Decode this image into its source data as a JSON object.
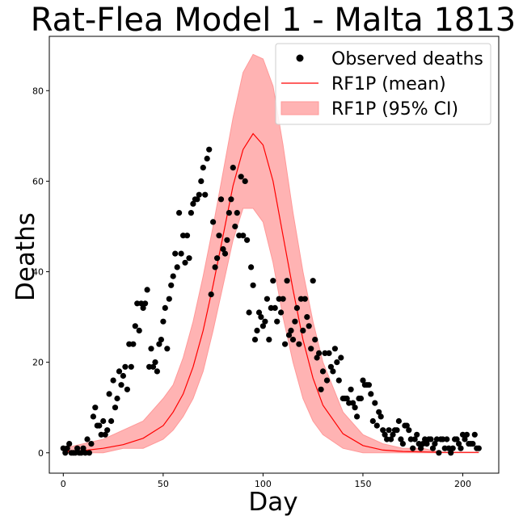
{
  "chart_data": {
    "type": "scatter",
    "title": "Rat-Flea Model 1 - Malta 1813",
    "xlabel": "Day",
    "ylabel": "Deaths",
    "xlim": [
      -7,
      218
    ],
    "ylim": [
      -4.5,
      92
    ],
    "xticks": [
      0,
      50,
      100,
      150,
      200
    ],
    "yticks": [
      0,
      20,
      40,
      60,
      80
    ],
    "grid": false,
    "legend_position": "top-right",
    "colors": {
      "observed": "#000000",
      "mean": "#ff0000",
      "ci_fill": "#ffb3b3",
      "ci_edge": "#ff9999"
    },
    "legend": [
      {
        "label": "Observed deaths",
        "kind": "marker"
      },
      {
        "label": "RF1P (mean)",
        "kind": "line"
      },
      {
        "label": "RF1P (95% CI)",
        "kind": "patch"
      }
    ],
    "series": [
      {
        "name": "Observed deaths",
        "kind": "scatter",
        "points": [
          [
            0,
            1
          ],
          [
            1,
            0
          ],
          [
            2,
            1
          ],
          [
            3,
            2
          ],
          [
            4,
            0
          ],
          [
            5,
            0
          ],
          [
            6,
            0
          ],
          [
            7,
            1
          ],
          [
            8,
            0
          ],
          [
            9,
            0
          ],
          [
            10,
            1
          ],
          [
            11,
            0
          ],
          [
            12,
            3
          ],
          [
            13,
            0
          ],
          [
            14,
            2
          ],
          [
            15,
            8
          ],
          [
            16,
            10
          ],
          [
            17,
            6
          ],
          [
            18,
            6
          ],
          [
            19,
            4
          ],
          [
            20,
            7
          ],
          [
            21,
            4
          ],
          [
            22,
            5
          ],
          [
            23,
            13
          ],
          [
            24,
            7
          ],
          [
            25,
            16
          ],
          [
            26,
            10
          ],
          [
            27,
            12
          ],
          [
            28,
            18
          ],
          [
            29,
            15
          ],
          [
            30,
            17
          ],
          [
            31,
            19
          ],
          [
            32,
            14
          ],
          [
            33,
            24
          ],
          [
            34,
            19
          ],
          [
            35,
            24
          ],
          [
            36,
            28
          ],
          [
            37,
            33
          ],
          [
            38,
            27
          ],
          [
            39,
            33
          ],
          [
            40,
            32
          ],
          [
            41,
            33
          ],
          [
            42,
            36
          ],
          [
            43,
            19
          ],
          [
            44,
            23
          ],
          [
            45,
            19
          ],
          [
            46,
            20
          ],
          [
            47,
            18
          ],
          [
            48,
            24
          ],
          [
            49,
            25
          ],
          [
            50,
            29
          ],
          [
            51,
            32
          ],
          [
            52,
            23
          ],
          [
            53,
            34
          ],
          [
            54,
            37
          ],
          [
            55,
            39
          ],
          [
            56,
            44
          ],
          [
            57,
            41
          ],
          [
            58,
            53
          ],
          [
            59,
            44
          ],
          [
            60,
            48
          ],
          [
            61,
            42
          ],
          [
            62,
            48
          ],
          [
            63,
            43
          ],
          [
            64,
            53
          ],
          [
            65,
            55
          ],
          [
            66,
            56
          ],
          [
            67,
            56
          ],
          [
            68,
            57
          ],
          [
            69,
            60
          ],
          [
            70,
            63
          ],
          [
            71,
            57
          ],
          [
            72,
            65
          ],
          [
            73,
            67
          ],
          [
            74,
            35
          ],
          [
            75,
            51
          ],
          [
            76,
            41
          ],
          [
            77,
            43
          ],
          [
            78,
            48
          ],
          [
            79,
            56
          ],
          [
            80,
            45
          ],
          [
            81,
            44
          ],
          [
            82,
            47
          ],
          [
            83,
            53
          ],
          [
            84,
            56
          ],
          [
            85,
            63
          ],
          [
            86,
            50
          ],
          [
            87,
            53
          ],
          [
            88,
            48
          ],
          [
            89,
            61
          ],
          [
            90,
            48
          ],
          [
            91,
            60
          ],
          [
            92,
            47
          ],
          [
            93,
            31
          ],
          [
            94,
            41
          ],
          [
            95,
            37
          ],
          [
            96,
            25
          ],
          [
            97,
            27
          ],
          [
            98,
            31
          ],
          [
            99,
            30
          ],
          [
            100,
            28
          ],
          [
            101,
            29
          ],
          [
            102,
            34
          ],
          [
            103,
            25
          ],
          [
            104,
            32
          ],
          [
            105,
            38
          ],
          [
            106,
            32
          ],
          [
            107,
            29
          ],
          [
            108,
            34
          ],
          [
            109,
            31
          ],
          [
            110,
            34
          ],
          [
            111,
            24
          ],
          [
            112,
            38
          ],
          [
            113,
            26
          ],
          [
            114,
            27
          ],
          [
            115,
            25
          ],
          [
            116,
            29
          ],
          [
            117,
            32
          ],
          [
            118,
            24
          ],
          [
            119,
            34
          ],
          [
            120,
            27
          ],
          [
            121,
            34
          ],
          [
            122,
            30
          ],
          [
            123,
            28
          ],
          [
            124,
            23
          ],
          [
            125,
            38
          ],
          [
            126,
            25
          ],
          [
            127,
            21
          ],
          [
            128,
            22
          ],
          [
            129,
            14
          ],
          [
            130,
            18
          ],
          [
            131,
            22
          ],
          [
            132,
            16
          ],
          [
            133,
            22
          ],
          [
            134,
            19
          ],
          [
            135,
            18
          ],
          [
            136,
            23
          ],
          [
            137,
            20
          ],
          [
            138,
            16
          ],
          [
            139,
            21
          ],
          [
            140,
            12
          ],
          [
            141,
            12
          ],
          [
            142,
            12
          ],
          [
            143,
            11
          ],
          [
            144,
            14
          ],
          [
            145,
            11
          ],
          [
            146,
            10
          ],
          [
            147,
            8
          ],
          [
            148,
            12
          ],
          [
            149,
            12
          ],
          [
            150,
            16
          ],
          [
            151,
            15
          ],
          [
            152,
            15
          ],
          [
            153,
            15
          ],
          [
            154,
            13
          ],
          [
            155,
            7
          ],
          [
            156,
            11
          ],
          [
            157,
            6
          ],
          [
            158,
            9
          ],
          [
            159,
            8
          ],
          [
            160,
            5
          ],
          [
            161,
            4
          ],
          [
            162,
            3
          ],
          [
            163,
            5
          ],
          [
            164,
            3
          ],
          [
            165,
            4
          ],
          [
            166,
            5
          ],
          [
            167,
            5
          ],
          [
            168,
            7
          ],
          [
            169,
            3
          ],
          [
            170,
            2
          ],
          [
            171,
            6
          ],
          [
            172,
            6
          ],
          [
            173,
            5
          ],
          [
            174,
            3
          ],
          [
            175,
            1
          ],
          [
            176,
            3
          ],
          [
            177,
            4
          ],
          [
            178,
            2
          ],
          [
            179,
            1
          ],
          [
            180,
            2
          ],
          [
            181,
            3
          ],
          [
            182,
            2
          ],
          [
            183,
            3
          ],
          [
            184,
            3
          ],
          [
            185,
            1
          ],
          [
            186,
            2
          ],
          [
            187,
            3
          ],
          [
            188,
            0
          ],
          [
            189,
            3
          ],
          [
            190,
            3
          ],
          [
            191,
            1
          ],
          [
            192,
            3
          ],
          [
            193,
            1
          ],
          [
            194,
            0
          ],
          [
            195,
            1
          ],
          [
            196,
            3
          ],
          [
            197,
            3
          ],
          [
            198,
            2
          ],
          [
            199,
            1
          ],
          [
            200,
            4
          ],
          [
            201,
            3
          ],
          [
            202,
            4
          ],
          [
            203,
            2
          ],
          [
            204,
            2
          ],
          [
            205,
            2
          ],
          [
            206,
            4
          ],
          [
            207,
            1
          ],
          [
            208,
            1
          ]
        ]
      },
      {
        "name": "RF1P (mean)",
        "kind": "line",
        "x": [
          0,
          10,
          20,
          30,
          40,
          50,
          55,
          60,
          65,
          70,
          75,
          80,
          85,
          90,
          95,
          100,
          105,
          110,
          115,
          120,
          125,
          130,
          140,
          150,
          160,
          170,
          180,
          190,
          200,
          208
        ],
        "y": [
          0.3,
          0.5,
          1.0,
          1.8,
          3.2,
          6.0,
          9.0,
          13.0,
          19.0,
          27.0,
          37.0,
          48.0,
          59.0,
          67.0,
          70.5,
          68.0,
          60.0,
          48.0,
          36.0,
          25.0,
          16.5,
          10.5,
          4.2,
          1.6,
          0.6,
          0.3,
          0.2,
          0.1,
          0.1,
          0.1
        ]
      },
      {
        "name": "RF1P (95% CI)",
        "kind": "band",
        "x": [
          0,
          10,
          20,
          30,
          40,
          50,
          55,
          60,
          65,
          70,
          75,
          80,
          85,
          90,
          95,
          100,
          105,
          110,
          115,
          120,
          125,
          130,
          140,
          150,
          160,
          170,
          180,
          190,
          200,
          208
        ],
        "lower": [
          0,
          0,
          0,
          1,
          1,
          3,
          5,
          8,
          12,
          18,
          27,
          37,
          47,
          54,
          54,
          51,
          42,
          30,
          20,
          12,
          7,
          4,
          1,
          0,
          0,
          0,
          0,
          0,
          0,
          0
        ],
        "upper": [
          1,
          2,
          3,
          5,
          7,
          12,
          15,
          21,
          29,
          39,
          50,
          62,
          74,
          84,
          88,
          87,
          81,
          68,
          53,
          40,
          29,
          20,
          9,
          4,
          2,
          1,
          1,
          0,
          0,
          0
        ]
      }
    ]
  }
}
